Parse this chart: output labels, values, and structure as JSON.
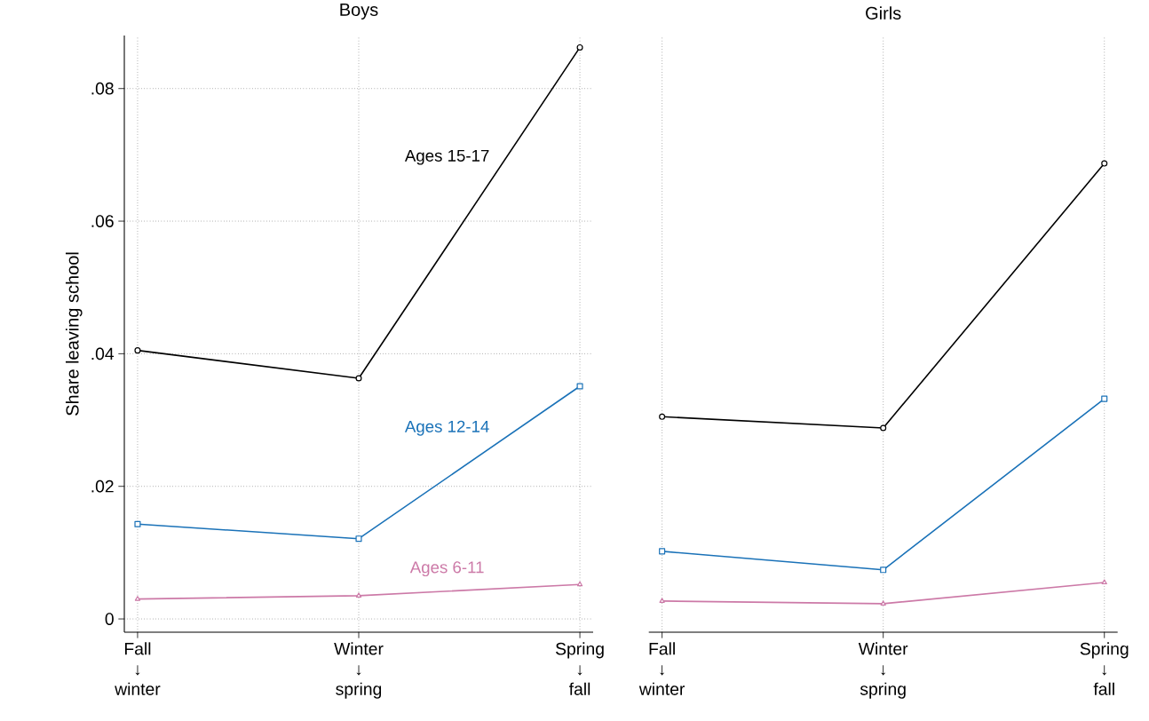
{
  "chart_data": [
    {
      "type": "line",
      "title": "Boys",
      "ylabel": "Share leaving school",
      "categories": [
        "Fall ↓ winter",
        "Winter ↓ spring",
        "Spring ↓ fall"
      ],
      "series": [
        {
          "name": "Ages 15-17",
          "color": "#000000",
          "marker": "circle",
          "values": [
            0.0405,
            0.0363,
            0.0862
          ]
        },
        {
          "name": "Ages 12-14",
          "color": "#1a72b8",
          "marker": "square",
          "values": [
            0.0143,
            0.0121,
            0.0351
          ]
        },
        {
          "name": "Ages 6-11",
          "color": "#cc79a7",
          "marker": "triangle",
          "values": [
            0.003,
            0.0035,
            0.0052
          ]
        }
      ],
      "ylim": [
        -0.002,
        0.088
      ],
      "yticks": [
        0,
        {
          "value": 0.02,
          "label": ".02"
        },
        {
          "value": 0.04,
          "label": ".04"
        },
        {
          "value": 0.06,
          "label": ".06"
        },
        {
          "value": 0.08,
          "label": ".08"
        }
      ],
      "grid": true
    },
    {
      "type": "line",
      "title": "Girls",
      "categories": [
        "Fall ↓ winter",
        "Winter ↓ spring",
        "Spring ↓ fall"
      ],
      "series": [
        {
          "color": "#000000",
          "marker": "circle",
          "values": [
            0.0305,
            0.0288,
            0.0687
          ]
        },
        {
          "color": "#1a72b8",
          "marker": "square",
          "values": [
            0.0102,
            0.0074,
            0.0332
          ]
        },
        {
          "color": "#cc79a7",
          "marker": "triangle",
          "values": [
            0.0027,
            0.0023,
            0.0055
          ]
        }
      ],
      "ylim": [
        -0.002,
        0.088
      ],
      "yticks": [
        {
          "value": 0,
          "label": null
        },
        {
          "value": 0.02,
          "label": null
        },
        {
          "value": 0.04,
          "label": null
        },
        {
          "value": 0.06,
          "label": null
        },
        {
          "value": 0.08,
          "label": null
        }
      ],
      "grid": true,
      "tick_labels": "x"
    }
  ]
}
